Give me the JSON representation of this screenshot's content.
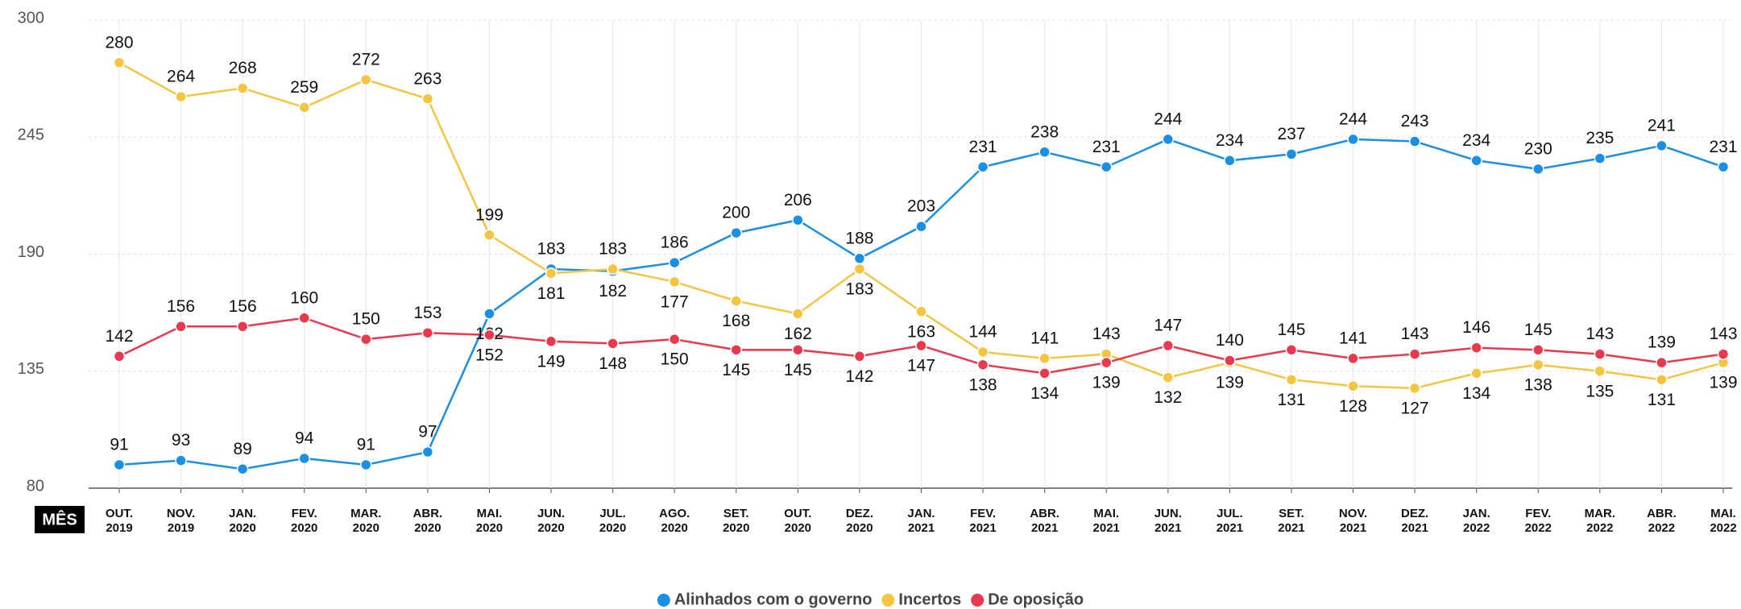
{
  "chart_data": {
    "type": "line",
    "x_label": "MÊS",
    "categories": [
      "OUT. 2019",
      "NOV. 2019",
      "JAN. 2020",
      "FEV. 2020",
      "MAR. 2020",
      "ABR. 2020",
      "MAI. 2020",
      "JUN. 2020",
      "JUL. 2020",
      "AGO. 2020",
      "SET. 2020",
      "OUT. 2020",
      "DEZ. 2020",
      "JAN. 2021",
      "FEV. 2021",
      "ABR. 2021",
      "MAI. 2021",
      "JUN. 2021",
      "JUL. 2021",
      "SET. 2021",
      "NOV. 2021",
      "DEZ. 2021",
      "JAN. 2022",
      "FEV. 2022",
      "MAR. 2022",
      "ABR. 2022",
      "MAI. 2022"
    ],
    "series": [
      {
        "name": "Alinhados com o governo",
        "color": "#1a8fe3",
        "values": [
          91,
          93,
          89,
          94,
          91,
          97,
          162,
          183,
          182,
          186,
          200,
          206,
          188,
          203,
          231,
          238,
          231,
          244,
          234,
          237,
          244,
          243,
          234,
          230,
          235,
          241,
          231
        ]
      },
      {
        "name": "Incertos",
        "color": "#f4c542",
        "values": [
          280,
          264,
          268,
          259,
          272,
          263,
          199,
          181,
          183,
          177,
          168,
          162,
          183,
          163,
          144,
          141,
          143,
          132,
          139,
          131,
          128,
          127,
          134,
          138,
          135,
          131,
          139
        ]
      },
      {
        "name": "De oposição",
        "color": "#e8394f",
        "values": [
          142,
          156,
          156,
          160,
          150,
          153,
          152,
          149,
          148,
          150,
          145,
          145,
          142,
          147,
          138,
          134,
          139,
          147,
          140,
          145,
          141,
          143,
          146,
          145,
          143,
          139,
          143
        ]
      }
    ],
    "ylim": [
      80,
      300
    ],
    "yticks": [
      80,
      135,
      190,
      245,
      300
    ],
    "grid": true,
    "legend": "bottom"
  }
}
